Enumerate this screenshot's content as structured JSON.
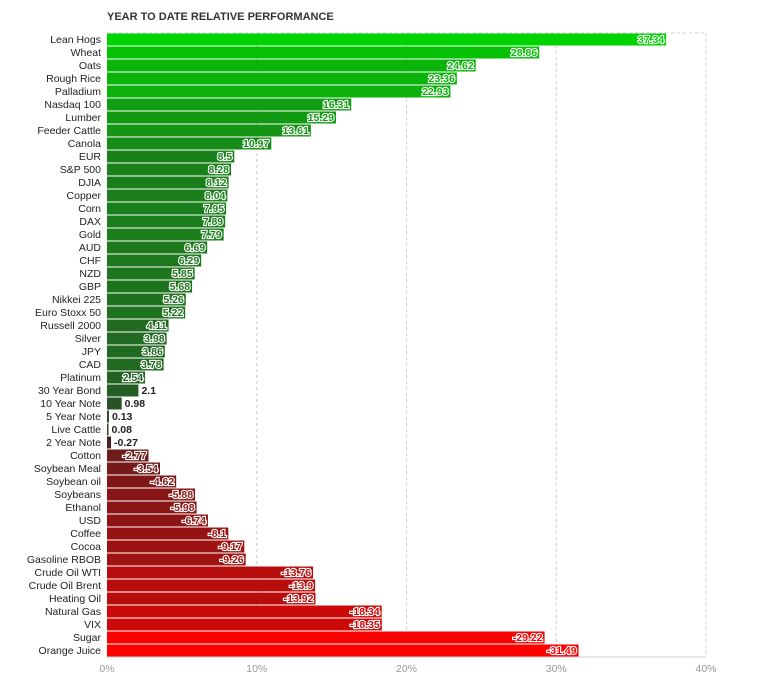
{
  "chart_data": {
    "type": "bar",
    "orientation": "horizontal",
    "title": "YEAR TO DATE RELATIVE PERFORMANCE",
    "xlim": [
      0,
      40
    ],
    "x_ticks": [
      "0%",
      "10%",
      "20%",
      "30%",
      "40%"
    ],
    "grid": true,
    "categories": [
      "Lean Hogs",
      "Wheat",
      "Oats",
      "Rough Rice",
      "Palladium",
      "Nasdaq 100",
      "Lumber",
      "Feeder Cattle",
      "Canola",
      "EUR",
      "S&P 500",
      "DJIA",
      "Copper",
      "Corn",
      "DAX",
      "Gold",
      "AUD",
      "CHF",
      "NZD",
      "GBP",
      "Nikkei 225",
      "Euro Stoxx 50",
      "Russell 2000",
      "Silver",
      "JPY",
      "CAD",
      "Platinum",
      "30 Year Bond",
      "10 Year Note",
      "5 Year Note",
      "Live Cattle",
      "2 Year Note",
      "Cotton",
      "Soybean Meal",
      "Soybean oil",
      "Soybeans",
      "Ethanol",
      "USD",
      "Coffee",
      "Cocoa",
      "Gasoline RBOB",
      "Crude Oil WTI",
      "Crude Oil Brent",
      "Heating Oil",
      "Natural Gas",
      "VIX",
      "Sugar",
      "Orange Juice"
    ],
    "values": [
      37.34,
      28.86,
      24.62,
      23.36,
      22.93,
      16.31,
      15.29,
      13.61,
      10.97,
      8.5,
      8.28,
      8.12,
      8.04,
      7.95,
      7.89,
      7.79,
      6.69,
      6.29,
      5.85,
      5.68,
      5.26,
      5.22,
      4.11,
      3.98,
      3.86,
      3.78,
      2.54,
      2.1,
      0.98,
      0.13,
      0.08,
      -0.27,
      -2.77,
      -3.54,
      -4.62,
      -5.88,
      -5.98,
      -6.74,
      -8.1,
      -9.17,
      -9.26,
      -13.76,
      -13.9,
      -13.92,
      -18.34,
      -18.35,
      -29.22,
      -31.49
    ],
    "value_labels": [
      "37.34",
      "28.86",
      "24.62",
      "23.36",
      "22.93",
      "16.31",
      "15.29",
      "13.61",
      "10.97",
      "8.5",
      "8.28",
      "8.12",
      "8.04",
      "7.95",
      "7.89",
      "7.79",
      "6.69",
      "6.29",
      "5.85",
      "5.68",
      "5.26",
      "5.22",
      "4.11",
      "3.98",
      "3.86",
      "3.78",
      "2.54",
      "2.1",
      "0.98",
      "0.13",
      "0.08",
      "-0.27",
      "-2.77",
      "-3.54",
      "-4.62",
      "-5.88",
      "-5.98",
      "-6.74",
      "-8.1",
      "-9.17",
      "-9.26",
      "-13.76",
      "-13.9",
      "-13.92",
      "-18.34",
      "-18.35",
      "-29.22",
      "-31.49"
    ],
    "colors": {
      "positive_high": "#00d400",
      "positive_low": "#2e3f2e",
      "negative_low": "#3a2424",
      "negative_high": "#ff0000",
      "grid": "#cccccc",
      "label_outline": "#ffffff"
    }
  }
}
